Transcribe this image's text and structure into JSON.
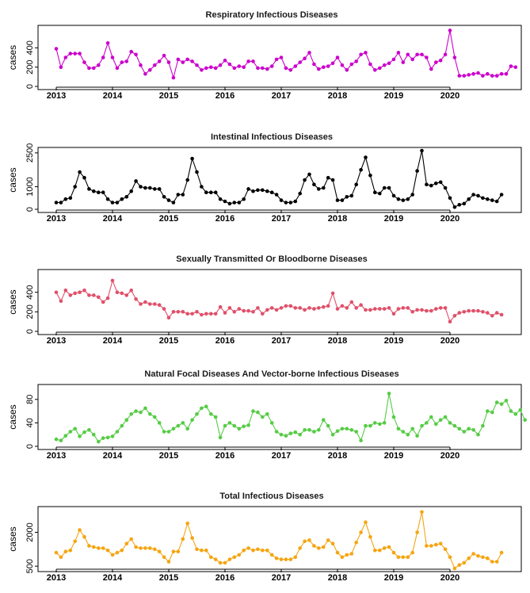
{
  "chart_data": [
    {
      "type": "line",
      "title": "Respiratory Infectious Diseases",
      "ylabel": "cases",
      "color": "#cc00cc",
      "ylim": [
        0,
        600
      ],
      "yticks": [
        0,
        200,
        400
      ],
      "xticks": [
        "2013",
        "2014",
        "2015",
        "2016",
        "2017",
        "2018",
        "2019",
        "2020"
      ],
      "x_start": "2013-01",
      "values": [
        390,
        200,
        300,
        340,
        340,
        340,
        250,
        190,
        190,
        220,
        300,
        450,
        300,
        190,
        250,
        260,
        360,
        330,
        220,
        130,
        170,
        220,
        260,
        320,
        250,
        90,
        280,
        250,
        280,
        260,
        220,
        170,
        190,
        200,
        190,
        220,
        270,
        230,
        190,
        210,
        200,
        260,
        260,
        190,
        190,
        180,
        210,
        280,
        300,
        190,
        170,
        210,
        250,
        290,
        350,
        230,
        180,
        200,
        210,
        240,
        300,
        220,
        170,
        230,
        260,
        330,
        350,
        230,
        170,
        190,
        220,
        240,
        280,
        350,
        250,
        330,
        280,
        330,
        330,
        300,
        180,
        250,
        270,
        330,
        580,
        300,
        110,
        110,
        120,
        130,
        140,
        110,
        130,
        110,
        110,
        130,
        130,
        210,
        200
      ]
    },
    {
      "type": "line",
      "title": "Intestinal Infectious Diseases",
      "ylabel": "cases",
      "color": "#000000",
      "ylim": [
        0,
        2600
      ],
      "yticks": [
        0,
        1000,
        2500
      ],
      "xticks": [
        "2013",
        "2014",
        "2015",
        "2016",
        "2017",
        "2018",
        "2019",
        "2020"
      ],
      "x_start": "2013-01",
      "values": [
        300,
        300,
        450,
        500,
        1000,
        1650,
        1400,
        900,
        800,
        750,
        750,
        450,
        300,
        300,
        450,
        550,
        800,
        1250,
        1000,
        950,
        950,
        900,
        900,
        550,
        400,
        300,
        650,
        650,
        1300,
        2250,
        1650,
        1000,
        750,
        750,
        750,
        450,
        350,
        250,
        300,
        300,
        450,
        900,
        800,
        850,
        850,
        800,
        750,
        650,
        400,
        300,
        300,
        350,
        700,
        1300,
        1550,
        1100,
        900,
        950,
        1400,
        1300,
        400,
        400,
        550,
        600,
        1100,
        1750,
        2300,
        1500,
        750,
        700,
        950,
        950,
        600,
        450,
        400,
        450,
        650,
        1700,
        2600,
        1100,
        1050,
        1150,
        1200,
        950,
        500,
        100,
        200,
        250,
        450,
        650,
        600,
        500,
        450,
        400,
        350,
        650
      ]
    },
    {
      "type": "line",
      "title": "Sexually Transmitted Or Bloodborne Diseases",
      "ylabel": "cases",
      "color": "#e0506a",
      "ylim": [
        0,
        600
      ],
      "yticks": [
        0,
        200,
        400
      ],
      "xticks": [
        "2013",
        "2014",
        "2015",
        "2016",
        "2017",
        "2018",
        "2019",
        "2020"
      ],
      "x_start": "2013-01",
      "values": [
        400,
        310,
        420,
        370,
        390,
        400,
        420,
        370,
        370,
        350,
        300,
        340,
        520,
        400,
        390,
        370,
        420,
        330,
        280,
        300,
        280,
        280,
        270,
        230,
        140,
        200,
        200,
        200,
        180,
        180,
        200,
        170,
        180,
        180,
        180,
        250,
        190,
        240,
        200,
        230,
        210,
        210,
        200,
        240,
        180,
        220,
        240,
        220,
        240,
        260,
        260,
        240,
        240,
        220,
        240,
        230,
        240,
        250,
        260,
        390,
        230,
        260,
        240,
        300,
        240,
        270,
        220,
        220,
        230,
        230,
        230,
        240,
        180,
        230,
        240,
        240,
        200,
        220,
        220,
        210,
        210,
        230,
        240,
        240,
        100,
        160,
        190,
        200,
        210,
        210,
        210,
        200,
        190,
        160,
        190,
        170
      ]
    },
    {
      "type": "line",
      "title": "Natural Focal Diseases And Vector-borne Infectious Diseases",
      "ylabel": "cases",
      "color": "#55cc44",
      "ylim": [
        0,
        100
      ],
      "yticks": [
        0,
        40,
        80
      ],
      "xticks": [
        "2013",
        "2014",
        "2015",
        "2016",
        "2017",
        "2018",
        "2019",
        "2020"
      ],
      "x_start": "2013-01",
      "values": [
        12,
        10,
        18,
        25,
        30,
        17,
        24,
        28,
        20,
        8,
        14,
        15,
        17,
        25,
        35,
        45,
        55,
        60,
        58,
        65,
        55,
        50,
        40,
        25,
        25,
        30,
        35,
        40,
        30,
        45,
        55,
        65,
        68,
        55,
        50,
        15,
        35,
        40,
        35,
        30,
        34,
        36,
        60,
        58,
        50,
        55,
        40,
        25,
        20,
        18,
        22,
        24,
        20,
        28,
        28,
        25,
        28,
        45,
        35,
        20,
        26,
        30,
        30,
        28,
        25,
        10,
        35,
        35,
        40,
        38,
        40,
        90,
        50,
        30,
        25,
        20,
        30,
        18,
        35,
        40,
        50,
        38,
        45,
        50,
        40,
        35,
        30,
        25,
        30,
        28,
        20,
        35,
        60,
        58,
        75,
        72,
        78,
        60,
        55,
        62,
        45
      ]
    },
    {
      "type": "line",
      "title": "Total Infectious Diseases",
      "ylabel": "cases",
      "color": "#f5a511",
      "ylim": [
        400,
        3000
      ],
      "yticks": [
        500,
        2000
      ],
      "xticks": [
        "2013",
        "2014",
        "2015",
        "2016",
        "2017",
        "2018",
        "2019",
        "2020"
      ],
      "x_start": "2013-01",
      "values": [
        1100,
        900,
        1150,
        1200,
        1600,
        2100,
        1800,
        1400,
        1350,
        1300,
        1300,
        1200,
        1000,
        1100,
        1200,
        1500,
        1700,
        1350,
        1300,
        1300,
        1300,
        1250,
        1150,
        900,
        700,
        1150,
        1150,
        1700,
        2400,
        1750,
        1250,
        1200,
        1200,
        900,
        800,
        650,
        650,
        800,
        900,
        1000,
        1200,
        1300,
        1200,
        1250,
        1200,
        1200,
        1000,
        850,
        800,
        800,
        800,
        900,
        1300,
        1600,
        1650,
        1400,
        1300,
        1350,
        1650,
        1500,
        1100,
        900,
        1000,
        1050,
        1550,
        2000,
        2450,
        1800,
        1200,
        1200,
        1300,
        1350,
        1100,
        900,
        900,
        900,
        1100,
        2000,
        2900,
        1400,
        1400,
        1450,
        1500,
        1250,
        900,
        400,
        550,
        650,
        850,
        1050,
        950,
        900,
        850,
        700,
        700,
        1100
      ]
    }
  ]
}
